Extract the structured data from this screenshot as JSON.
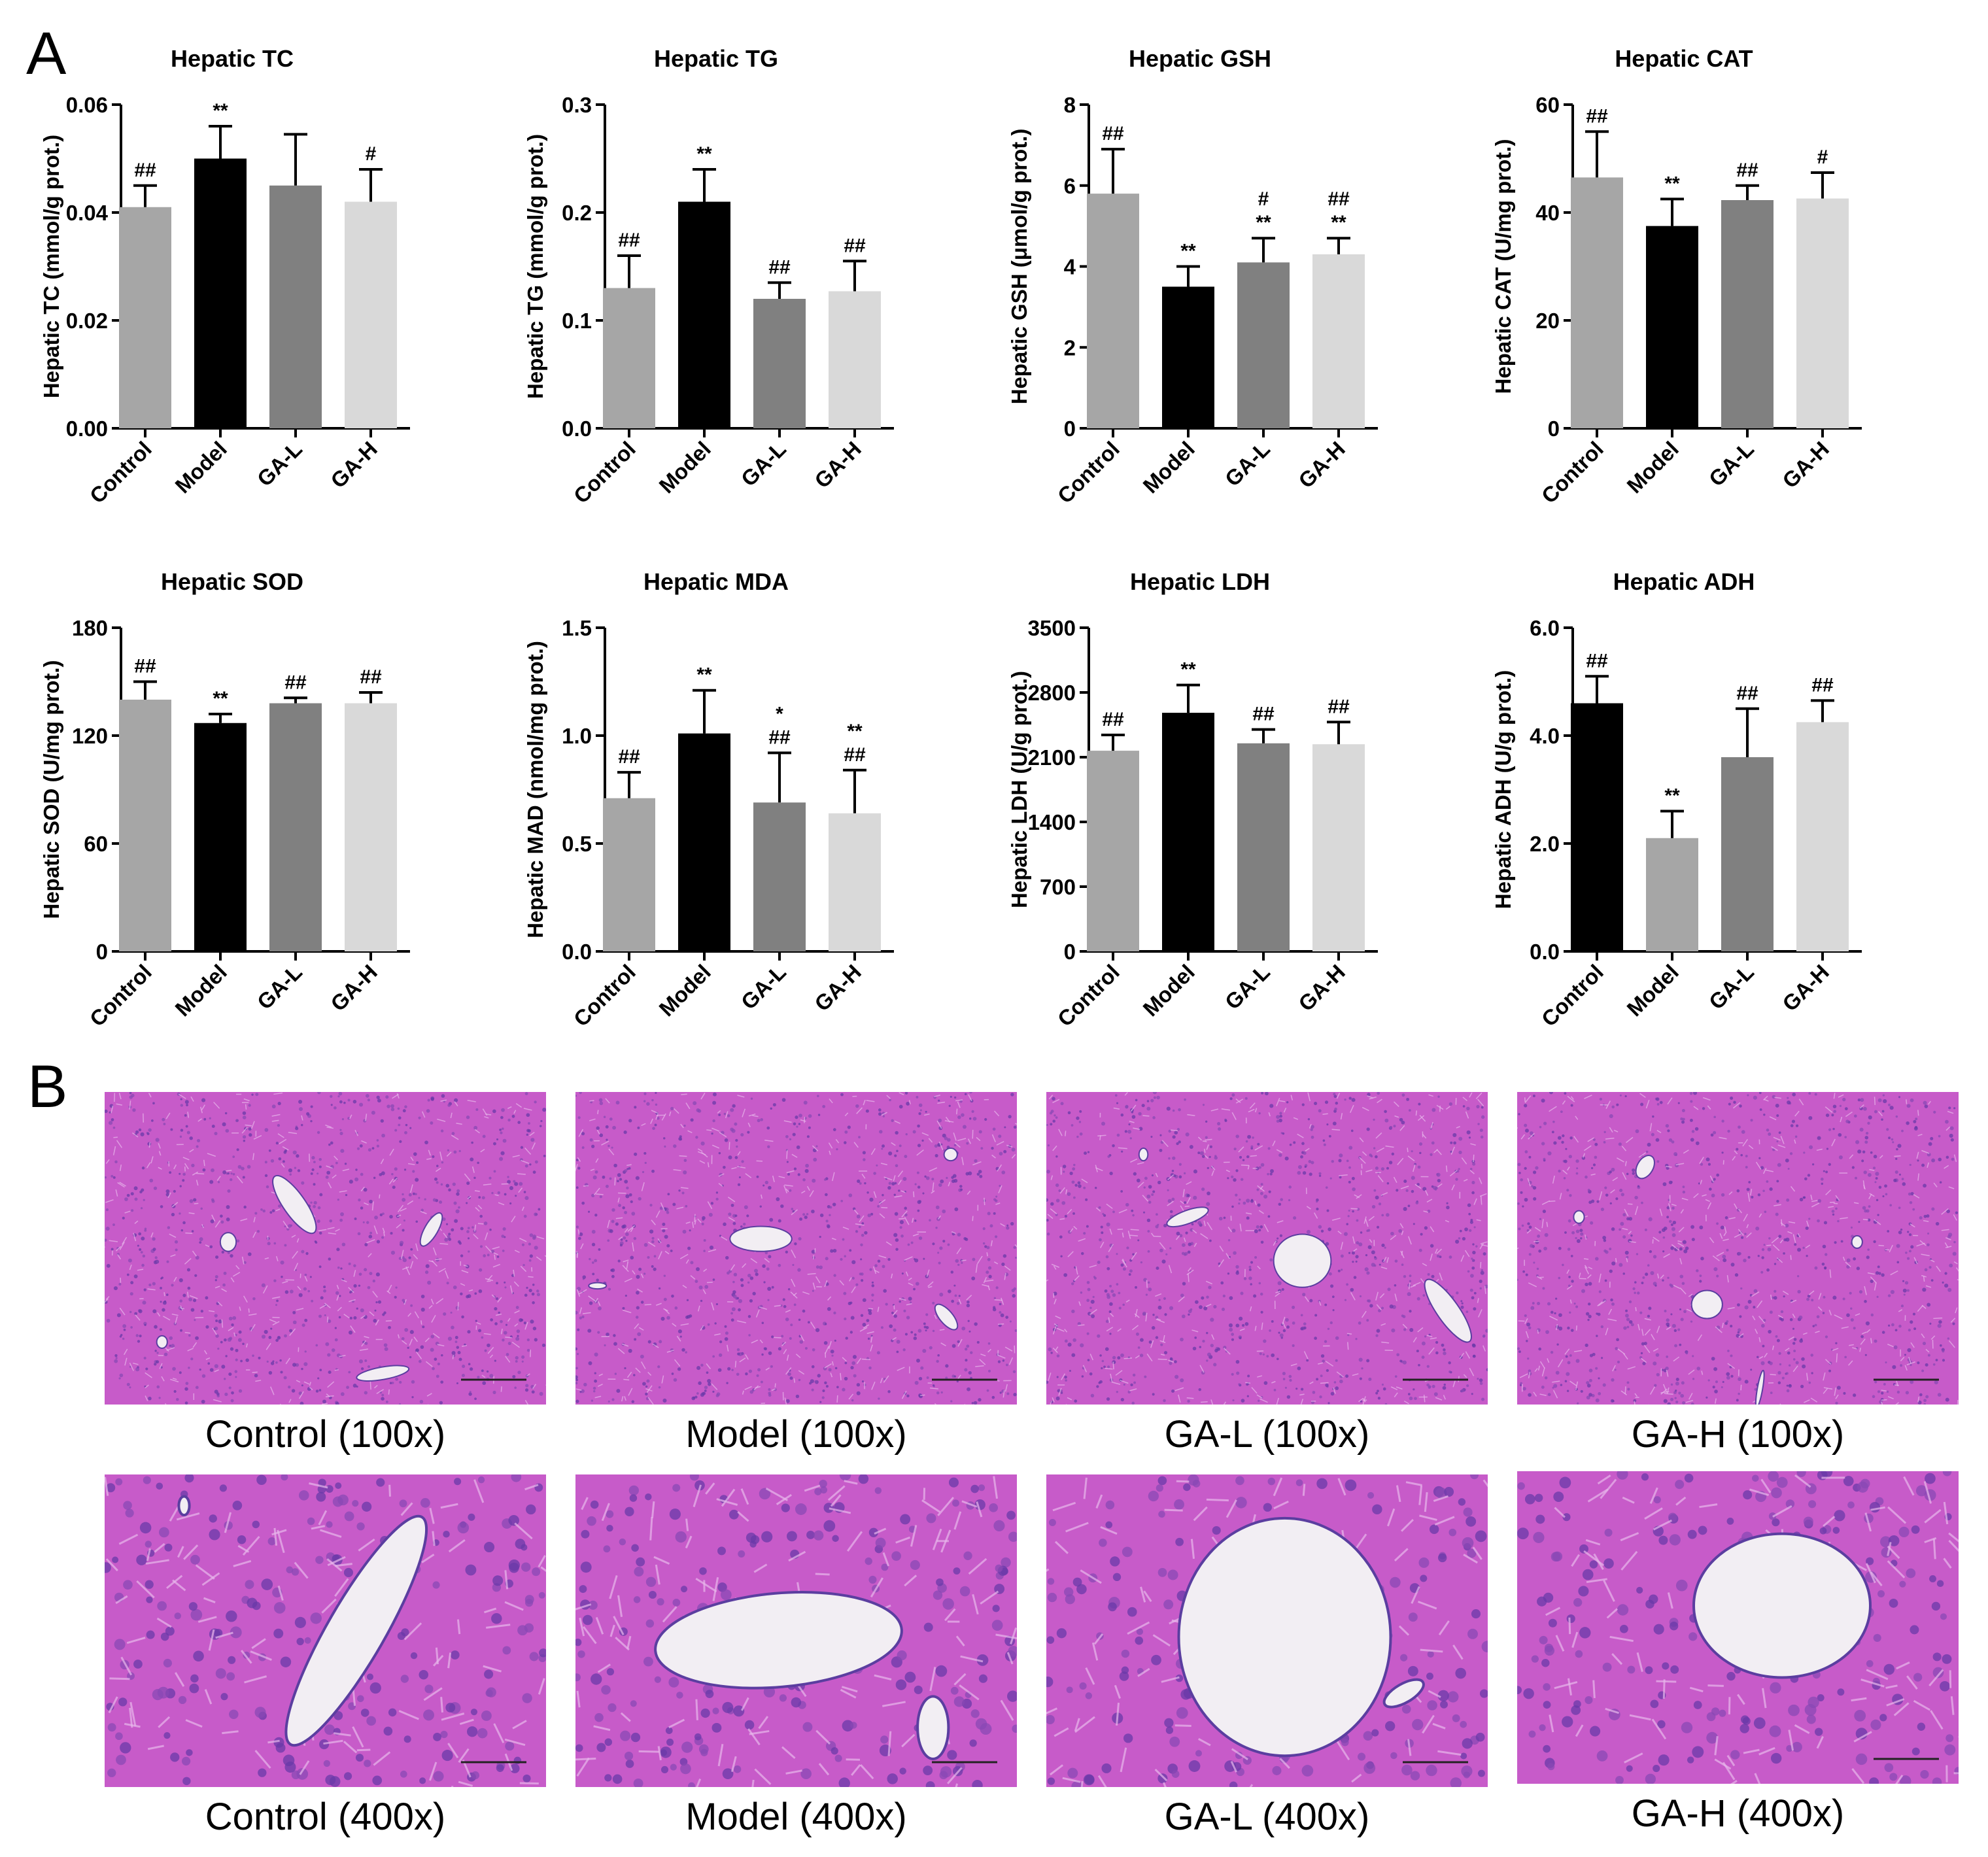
{
  "panel_labels": {
    "A": "A",
    "B": "B"
  },
  "chart_data": [
    {
      "type": "bar",
      "title": "Hepatic TC",
      "ylabel": "Hepatic TC (mmol/g prot.)",
      "categories": [
        "Control",
        "Model",
        "GA-L",
        "GA-H"
      ],
      "values": [
        0.041,
        0.05,
        0.045,
        0.042
      ],
      "errors": [
        0.004,
        0.006,
        0.0095,
        0.006
      ],
      "ylim": [
        0,
        0.06
      ],
      "yticks": [
        "0.00",
        "0.02",
        "0.04",
        "0.06"
      ],
      "annotations": [
        [
          "##"
        ],
        [
          "**"
        ],
        [],
        [
          "#"
        ]
      ],
      "bar_colors": [
        "#a6a6a6",
        "#000000",
        "#808080",
        "#d9d9d9"
      ]
    },
    {
      "type": "bar",
      "title": "Hepatic TG",
      "ylabel": "Hepatic TG (mmol/g prot.)",
      "categories": [
        "Control",
        "Model",
        "GA-L",
        "GA-H"
      ],
      "values": [
        0.13,
        0.21,
        0.12,
        0.127
      ],
      "errors": [
        0.03,
        0.03,
        0.015,
        0.028
      ],
      "ylim": [
        0,
        0.3
      ],
      "yticks": [
        "0.0",
        "0.1",
        "0.2",
        "0.3"
      ],
      "annotations": [
        [
          "##"
        ],
        [
          "**"
        ],
        [
          "##"
        ],
        [
          "##"
        ]
      ],
      "bar_colors": [
        "#a6a6a6",
        "#000000",
        "#808080",
        "#d9d9d9"
      ]
    },
    {
      "type": "bar",
      "title": "Hepatic GSH",
      "ylabel": "Hepatic GSH (μmol/g prot.)",
      "categories": [
        "Control",
        "Model",
        "GA-L",
        "GA-H"
      ],
      "values": [
        5.8,
        3.5,
        4.1,
        4.3
      ],
      "errors": [
        1.1,
        0.5,
        0.6,
        0.4
      ],
      "ylim": [
        0,
        8
      ],
      "yticks": [
        "0",
        "2",
        "4",
        "6",
        "8"
      ],
      "annotations": [
        [
          "##"
        ],
        [
          "**"
        ],
        [
          "#",
          "**"
        ],
        [
          "##",
          "**"
        ]
      ],
      "bar_colors": [
        "#a6a6a6",
        "#000000",
        "#808080",
        "#d9d9d9"
      ]
    },
    {
      "type": "bar",
      "title": "Hepatic CAT",
      "ylabel": "Hepatic CAT (U/mg prot.)",
      "categories": [
        "Control",
        "Model",
        "GA-L",
        "GA-H"
      ],
      "values": [
        46.5,
        37.5,
        42.3,
        42.6
      ],
      "errors": [
        8.5,
        5,
        2.7,
        4.8
      ],
      "ylim": [
        0,
        60
      ],
      "yticks": [
        "0",
        "20",
        "40",
        "60"
      ],
      "annotations": [
        [
          "##"
        ],
        [
          "**"
        ],
        [
          "##"
        ],
        [
          "#"
        ]
      ],
      "bar_colors": [
        "#a6a6a6",
        "#000000",
        "#808080",
        "#d9d9d9"
      ]
    },
    {
      "type": "bar",
      "title": "Hepatic SOD",
      "ylabel": "Hepatic SOD (U/mg prot.)",
      "categories": [
        "Control",
        "Model",
        "GA-L",
        "GA-H"
      ],
      "values": [
        140,
        127,
        138,
        138
      ],
      "errors": [
        10,
        5,
        3,
        6
      ],
      "ylim": [
        0,
        180
      ],
      "yticks": [
        "0",
        "60",
        "120",
        "180"
      ],
      "annotations": [
        [
          "##"
        ],
        [
          "**"
        ],
        [
          "##"
        ],
        [
          "##"
        ]
      ],
      "bar_colors": [
        "#a6a6a6",
        "#000000",
        "#808080",
        "#d9d9d9"
      ]
    },
    {
      "type": "bar",
      "title": "Hepatic MDA",
      "ylabel": "Hepatic MAD (nmol/mg prot.)",
      "categories": [
        "Control",
        "Model",
        "GA-L",
        "GA-H"
      ],
      "values": [
        0.71,
        1.01,
        0.69,
        0.64
      ],
      "errors": [
        0.12,
        0.2,
        0.23,
        0.2
      ],
      "ylim": [
        0,
        1.5
      ],
      "yticks": [
        "0.0",
        "0.5",
        "1.0",
        "1.5"
      ],
      "annotations": [
        [
          "##"
        ],
        [
          "**"
        ],
        [
          "*",
          "##"
        ],
        [
          "**",
          "##"
        ]
      ],
      "bar_colors": [
        "#a6a6a6",
        "#000000",
        "#808080",
        "#d9d9d9"
      ]
    },
    {
      "type": "bar",
      "title": "Hepatic LDH",
      "ylabel": "Hepatic LDH (U/g prot.)",
      "categories": [
        "Control",
        "Model",
        "GA-L",
        "GA-H"
      ],
      "values": [
        2170,
        2580,
        2250,
        2240
      ],
      "errors": [
        170,
        300,
        150,
        240
      ],
      "ylim": [
        0,
        3500
      ],
      "yticks": [
        "0",
        "700",
        "1400",
        "2100",
        "2800",
        "3500"
      ],
      "annotations": [
        [
          "##"
        ],
        [
          "**"
        ],
        [
          "##"
        ],
        [
          "##"
        ]
      ],
      "bar_colors": [
        "#a6a6a6",
        "#000000",
        "#808080",
        "#d9d9d9"
      ]
    },
    {
      "type": "bar",
      "title": "Hepatic ADH",
      "ylabel": "Hepatic ADH (U/g prot.)",
      "categories": [
        "Control",
        "Model",
        "GA-L",
        "GA-H"
      ],
      "values": [
        4.6,
        2.1,
        3.6,
        4.25
      ],
      "errors": [
        0.5,
        0.5,
        0.9,
        0.4
      ],
      "ylim": [
        0,
        6
      ],
      "yticks": [
        "0.0",
        "2.0",
        "4.0",
        "6.0"
      ],
      "annotations": [
        [
          "##"
        ],
        [
          "**"
        ],
        [
          "##"
        ],
        [
          "##"
        ]
      ],
      "bar_colors": [
        "#000000",
        "#a6a6a6",
        "#808080",
        "#d9d9d9"
      ]
    }
  ],
  "histology": {
    "captions": [
      "Control (100x)",
      "Model (100x)",
      "GA-L (100x)",
      "GA-H (100x)",
      "Control (400x)",
      "Model (400x)",
      "GA-L (400x)",
      "GA-H (400x)"
    ],
    "tissue_color": "#c75bc9",
    "vessel_color": "#f2eef3"
  }
}
